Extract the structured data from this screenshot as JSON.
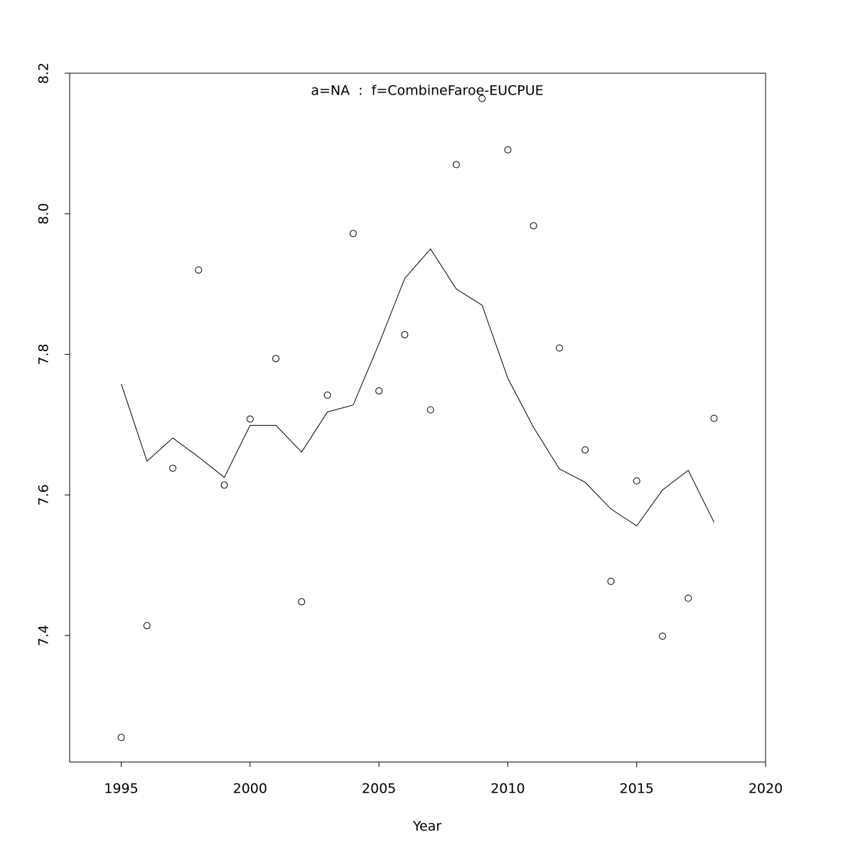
{
  "chart_data": {
    "type": "scatter",
    "title": "a=NA  :  f=CombineFaroe-EUCPUE",
    "x_label": "Year",
    "x": [
      1995,
      1996,
      1997,
      1998,
      1999,
      2000,
      2001,
      2002,
      2003,
      2004,
      2005,
      2006,
      2007,
      2008,
      2009,
      2010,
      2011,
      2012,
      2013,
      2014,
      2015,
      2016,
      2017,
      2018
    ],
    "series": [
      {
        "mark": "point",
        "color": "#000000",
        "values": [
          7.255,
          7.414,
          7.638,
          7.92,
          7.614,
          7.708,
          7.794,
          7.448,
          7.742,
          7.972,
          7.748,
          7.828,
          7.721,
          8.07,
          8.164,
          8.091,
          7.983,
          7.809,
          7.664,
          7.477,
          7.62,
          7.399,
          7.453,
          7.709
        ]
      },
      {
        "mark": "line",
        "color": "#000000",
        "values": [
          7.758,
          7.648,
          7.681,
          7.654,
          7.625,
          7.699,
          7.699,
          7.661,
          7.718,
          7.728,
          7.815,
          7.908,
          7.95,
          7.893,
          7.87,
          7.766,
          7.696,
          7.637,
          7.618,
          7.58,
          7.556,
          7.607,
          7.635,
          7.561
        ]
      }
    ],
    "xlim": [
      1993,
      2020
    ],
    "ylim": [
      7.22,
      8.2
    ],
    "xticks": [
      1995,
      2000,
      2005,
      2010,
      2015,
      2020
    ],
    "yticks": [
      7.4,
      7.6,
      7.8,
      {
        "value": 8,
        "label": "8.0"
      },
      8.2
    ],
    "title_color": "#808080"
  }
}
